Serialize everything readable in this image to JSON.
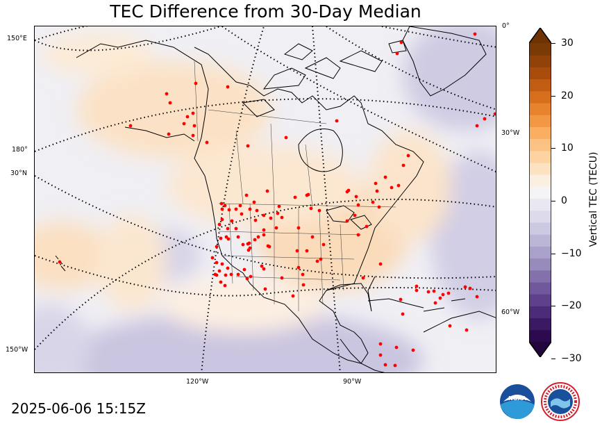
{
  "title": "TEC Difference from 30-Day Median",
  "timestamp": "2025-06-06 15:15Z",
  "map": {
    "lon_labels_left": [
      {
        "text": "150°E"
      },
      {
        "text": "180°"
      },
      {
        "text": "30°N"
      },
      {
        "text": "150°W"
      }
    ],
    "lon_labels_right": [
      {
        "text": "0°"
      },
      {
        "text": "30°W"
      },
      {
        "text": "60°W"
      }
    ],
    "lon_labels_bottom": [
      {
        "text": "120°W"
      },
      {
        "text": "90°W"
      }
    ],
    "station_color": "#ff0000",
    "coastline_color": "#000000"
  },
  "colorbar": {
    "label": "Vertical TEC (TECU)",
    "ticks": [
      "30",
      "20",
      "10",
      "0",
      "−10",
      "−20",
      "−30"
    ],
    "range": [
      -30,
      30
    ],
    "negative_extreme": "#2d0a4f",
    "neutral": "#f4f3f5",
    "positive_extreme": "#7a3a06"
  },
  "logos": {
    "noaa": "NOAA",
    "nws": "NATIONAL WEATHER SERVICE"
  }
}
